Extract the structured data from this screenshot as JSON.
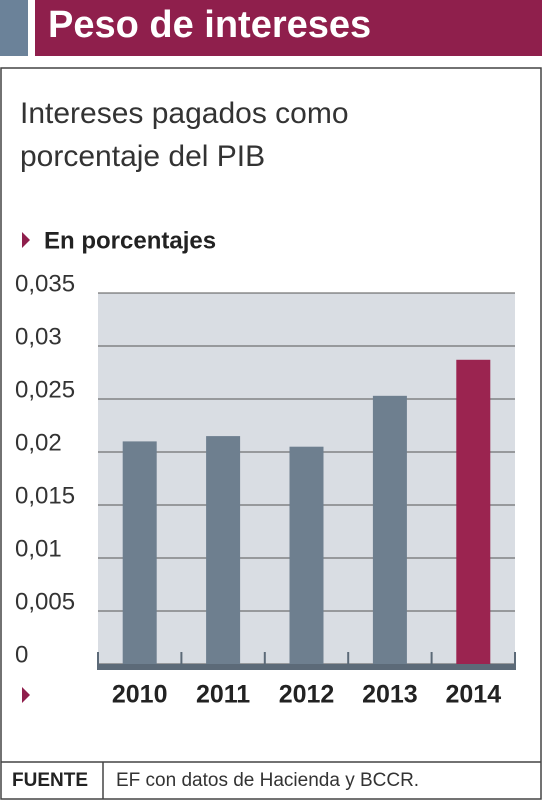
{
  "header": {
    "title": "Peso de intereses"
  },
  "chart_data": {
    "type": "bar",
    "title": "Intereses pagados como porcentaje del PIB",
    "ylabel": "En porcentajes",
    "categories": [
      "2010",
      "2011",
      "2012",
      "2013",
      "2014"
    ],
    "values": [
      0.021,
      0.0215,
      0.0205,
      0.0253,
      0.0287
    ],
    "colors": [
      "#6e7f8f",
      "#6e7f8f",
      "#6e7f8f",
      "#6e7f8f",
      "#9b2450"
    ],
    "ylim": [
      0,
      0.035
    ],
    "yticks": [
      0,
      {
        "value": 0.005,
        "label": "0,005"
      },
      {
        "value": 0.01,
        "label": "0,01"
      },
      {
        "value": 0.015,
        "label": "0,015"
      },
      {
        "value": 0.02,
        "label": "0,02"
      },
      {
        "value": 0.025,
        "label": "0,025"
      },
      {
        "value": 0.03,
        "label": "0,03"
      },
      {
        "value": 0.035,
        "label": "0,035"
      }
    ],
    "grid": true
  },
  "footer": {
    "label": "FUENTE",
    "text": "EF con datos de Hacienda y BCCR."
  }
}
